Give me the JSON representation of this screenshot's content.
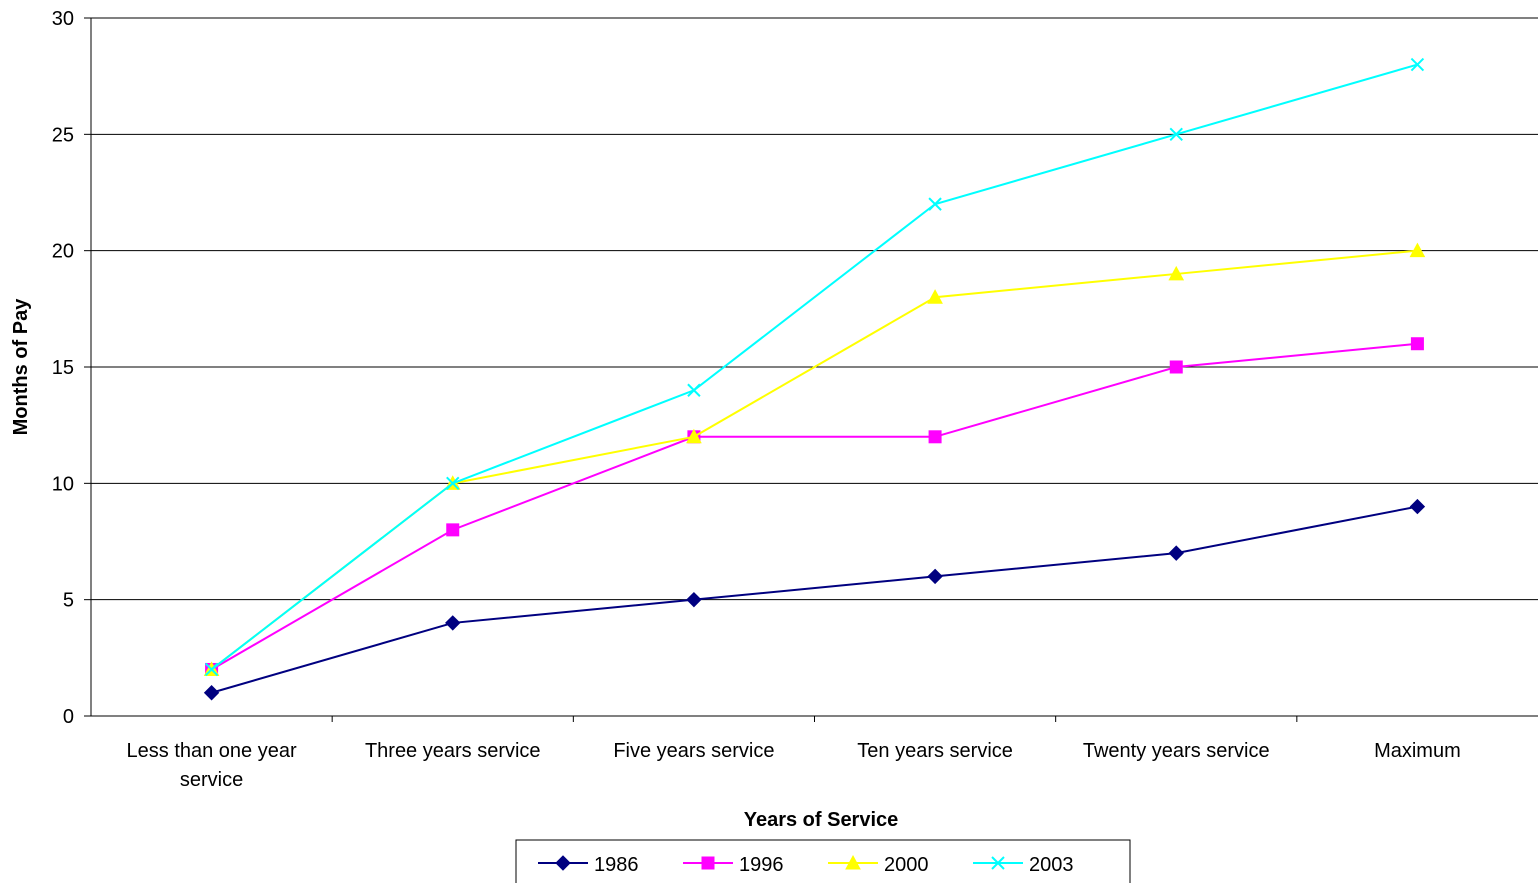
{
  "chart_data": {
    "type": "line",
    "title": "",
    "xlabel": "Years of Service",
    "ylabel": "Months of Pay",
    "ylim": [
      0,
      30
    ],
    "yticks": [
      0,
      5,
      10,
      15,
      20,
      25,
      30
    ],
    "grid": "horizontal",
    "legend_position": "bottom",
    "categories": [
      [
        "Less than one year",
        "service"
      ],
      [
        "Three years service"
      ],
      [
        "Five years service"
      ],
      [
        "Ten years service"
      ],
      [
        "Twenty years service"
      ],
      [
        "Maximum"
      ]
    ],
    "series": [
      {
        "name": "1986",
        "color": "#000080",
        "marker": "diamond",
        "values": [
          1,
          4,
          5,
          6,
          7,
          9
        ]
      },
      {
        "name": "1996",
        "color": "#FF00FF",
        "marker": "square",
        "values": [
          2,
          8,
          12,
          12,
          15,
          16
        ]
      },
      {
        "name": "2000",
        "color": "#FFFF00",
        "marker": "triangle",
        "values": [
          2,
          10,
          12,
          18,
          19,
          20
        ]
      },
      {
        "name": "2003",
        "color": "#00FFFF",
        "marker": "x",
        "values": [
          2,
          10,
          14,
          22,
          25,
          28
        ]
      }
    ]
  }
}
